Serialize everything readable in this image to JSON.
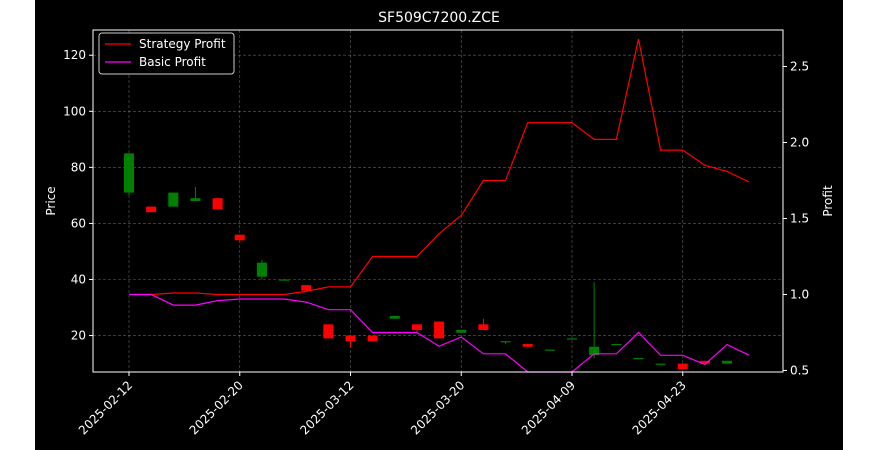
{
  "chart_data": {
    "type": "candlestick",
    "title": "SF509C7200.ZCE",
    "ylabel_left": "Price",
    "ylabel_right": "Profit",
    "ylim_left": [
      7,
      129
    ],
    "ylim_right": [
      0.49,
      2.74
    ],
    "yticks_left": [
      20,
      40,
      60,
      80,
      100,
      120
    ],
    "yticks_right": [
      0.5,
      1.0,
      1.5,
      2.0,
      2.5
    ],
    "grid": true,
    "legend_position": "top-left",
    "x_tick_labels": [
      "2025-02-12",
      "2025-02-20",
      "2025-03-12",
      "2025-03-20",
      "2025-04-09",
      "2025-04-23"
    ],
    "x_tick_index": [
      0,
      5,
      10,
      15,
      20,
      25
    ],
    "candles": [
      {
        "open": 71,
        "high": 85,
        "low": 70,
        "close": 85
      },
      {
        "open": 66,
        "high": 66,
        "low": 64,
        "close": 64
      },
      {
        "open": 66,
        "high": 71,
        "low": 66,
        "close": 71
      },
      {
        "open": 68,
        "high": 73,
        "low": 68,
        "close": 69
      },
      {
        "open": 69,
        "high": 69,
        "low": 65,
        "close": 65
      },
      {
        "open": 56,
        "high": 56,
        "low": 53,
        "close": 54
      },
      {
        "open": 41,
        "high": 47,
        "low": 40,
        "close": 46
      },
      {
        "open": 40,
        "high": 40,
        "low": 40,
        "close": 40
      },
      {
        "open": 38,
        "high": 38,
        "low": 36,
        "close": 36
      },
      {
        "open": 24,
        "high": 24,
        "low": 19,
        "close": 19
      },
      {
        "open": 20,
        "high": 20,
        "low": 16,
        "close": 18
      },
      {
        "open": 20,
        "high": 20,
        "low": 18,
        "close": 18
      },
      {
        "open": 26,
        "high": 27,
        "low": 26,
        "close": 27
      },
      {
        "open": 24,
        "high": 24,
        "low": 21,
        "close": 22
      },
      {
        "open": 25,
        "high": 25,
        "low": 19,
        "close": 19
      },
      {
        "open": 21,
        "high": 22,
        "low": 21,
        "close": 22
      },
      {
        "open": 24,
        "high": 26,
        "low": 22,
        "close": 22
      },
      {
        "open": 18,
        "high": 18,
        "low": 17,
        "close": 18
      },
      {
        "open": 17,
        "high": 17,
        "low": 16,
        "close": 16
      },
      {
        "open": 15,
        "high": 15,
        "low": 15,
        "close": 15
      },
      {
        "open": 19,
        "high": 19,
        "low": 19,
        "close": 19
      },
      {
        "open": 13,
        "high": 39,
        "low": 12,
        "close": 16
      },
      {
        "open": 17,
        "high": 17,
        "low": 17,
        "close": 17
      },
      {
        "open": 12,
        "high": 12,
        "low": 12,
        "close": 12
      },
      {
        "open": 10,
        "high": 10,
        "low": 10,
        "close": 10
      },
      {
        "open": 10,
        "high": 10,
        "low": 8,
        "close": 8
      },
      {
        "open": 11,
        "high": 11,
        "low": 10,
        "close": 10
      },
      {
        "open": 10,
        "high": 11,
        "low": 10,
        "close": 11
      }
    ],
    "series": [
      {
        "name": "Strategy Profit",
        "color": "#ff0000",
        "values": [
          1.0,
          1.0,
          1.01,
          1.01,
          1.0,
          1.0,
          1.0,
          1.0,
          1.02,
          1.05,
          1.05,
          1.25,
          1.25,
          1.25,
          1.4,
          1.52,
          1.75,
          1.75,
          2.13,
          2.13,
          2.13,
          2.02,
          2.02,
          2.68,
          1.95,
          1.95,
          1.85,
          1.81,
          1.74
        ]
      },
      {
        "name": "Basic Profit",
        "color": "#ff00ff",
        "values": [
          1.0,
          1.0,
          0.93,
          0.93,
          0.96,
          0.97,
          0.97,
          0.97,
          0.95,
          0.9,
          0.9,
          0.75,
          0.75,
          0.75,
          0.66,
          0.72,
          0.61,
          0.61,
          0.49,
          0.49,
          0.49,
          0.61,
          0.61,
          0.75,
          0.6,
          0.6,
          0.54,
          0.67,
          0.6
        ]
      }
    ],
    "colors": {
      "up": "#008000",
      "down": "#ff0000",
      "grid": "#b0b0b0"
    }
  }
}
